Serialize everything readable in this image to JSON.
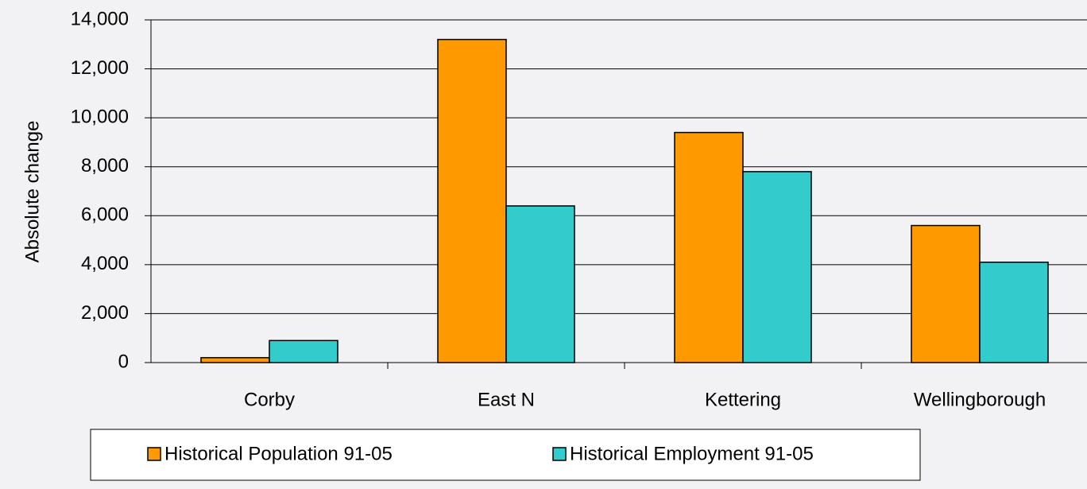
{
  "chart_data": {
    "type": "bar",
    "title": "",
    "xlabel": "",
    "ylabel": "Absolute change",
    "categories": [
      "Corby",
      "East N",
      "Kettering",
      "Wellingborough"
    ],
    "series": [
      {
        "name": "Historical Population 91-05",
        "values": [
          200,
          13200,
          9400,
          5600
        ]
      },
      {
        "name": "Historical Employment 91-05",
        "values": [
          900,
          6400,
          7800,
          4100
        ]
      }
    ],
    "ylim": [
      0,
      14000
    ],
    "yticks": [
      0,
      2000,
      4000,
      6000,
      8000,
      10000,
      12000,
      14000
    ],
    "ytick_labels": [
      "0",
      "2,000",
      "4,000",
      "6,000",
      "8,000",
      "10,000",
      "12,000",
      "14,000"
    ],
    "grid": true,
    "legend_position": "bottom",
    "colors": [
      "#FF9900",
      "#33CCCC"
    ],
    "background": "#f2f2f4"
  }
}
